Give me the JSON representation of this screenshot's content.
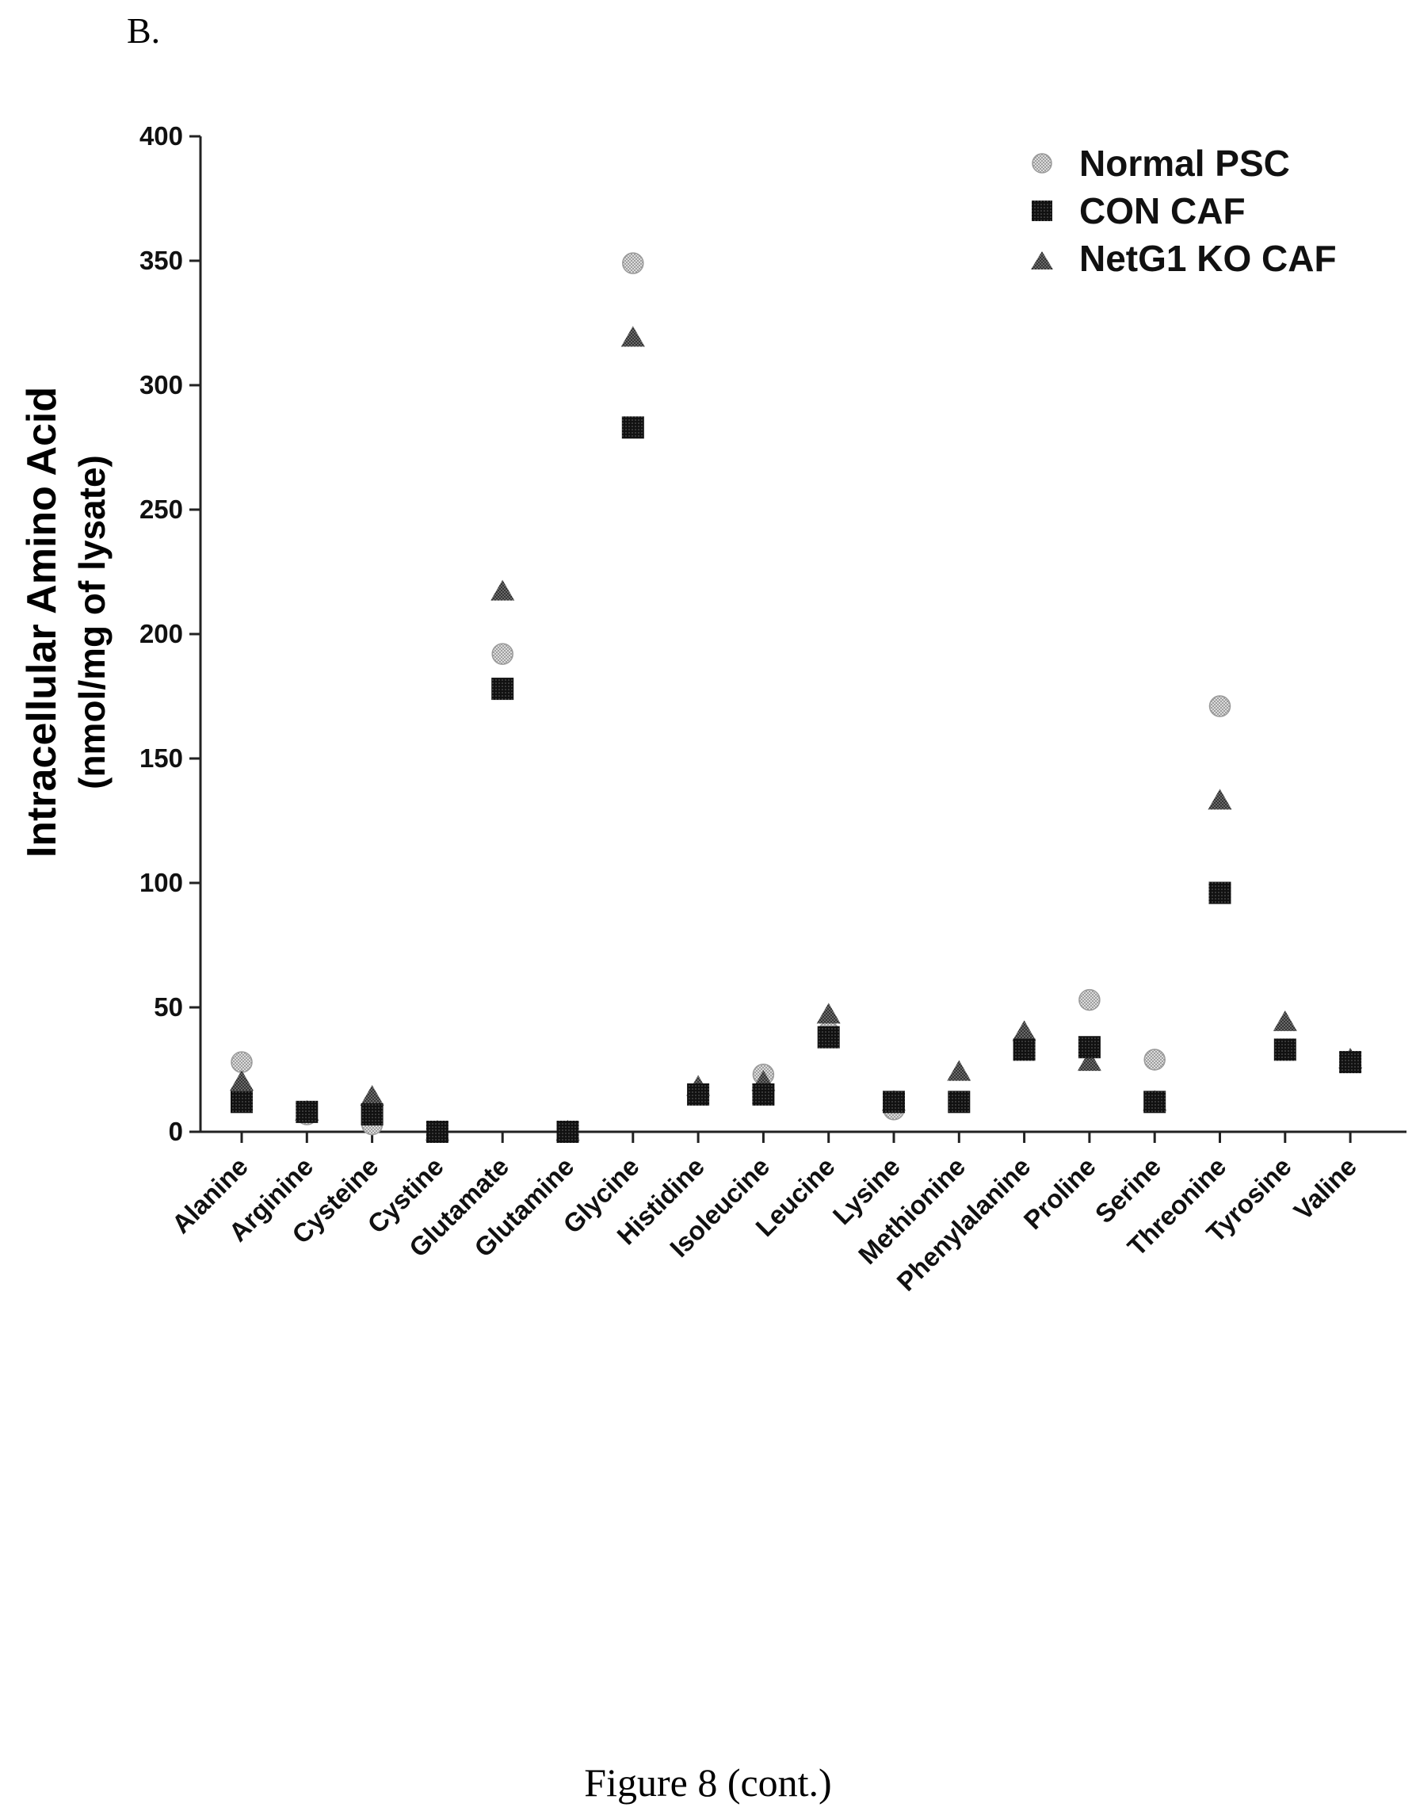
{
  "panel_label": "B.",
  "caption": "Figure 8 (cont.)",
  "colors": {
    "normal_psc": "#b3b3b3",
    "con_caf": "#111111",
    "netg1_ko_caf": "#5a5a5a",
    "axis": "#222222"
  },
  "chart_data": {
    "type": "scatter",
    "title": "",
    "xlabel": "",
    "ylabel_line1": "Intracellular Amino Acid",
    "ylabel_line2": "(nmol/mg of lysate)",
    "ylim": [
      0,
      400
    ],
    "yticks": [
      0,
      50,
      100,
      150,
      200,
      250,
      300,
      350,
      400
    ],
    "grid": false,
    "legend_position": "top-right",
    "categories": [
      "Alanine",
      "Arginine",
      "Cysteine",
      "Cystine",
      "Glutamate",
      "Glutamine",
      "Glycine",
      "Histidine",
      "Isoleucine",
      "Leucine",
      "Lysine",
      "Methionine",
      "Phenylalanine",
      "Proline",
      "Serine",
      "Threonine",
      "Tyrosine",
      "Valine"
    ],
    "series": [
      {
        "name": "Normal PSC",
        "marker": "circle",
        "values": [
          28,
          7,
          3,
          0,
          192,
          0,
          349,
          15,
          23,
          40,
          9,
          12,
          35,
          53,
          29,
          171,
          33,
          28
        ]
      },
      {
        "name": "CON CAF",
        "marker": "square",
        "values": [
          12,
          8,
          7,
          0,
          178,
          0,
          283,
          15,
          15,
          38,
          12,
          12,
          33,
          34,
          12,
          96,
          33,
          28
        ]
      },
      {
        "name": "NetG1 KO CAF",
        "marker": "triangle",
        "values": [
          20,
          8,
          14,
          0,
          217,
          0,
          319,
          18,
          20,
          47,
          12,
          24,
          40,
          28,
          12,
          133,
          44,
          29
        ]
      }
    ]
  }
}
